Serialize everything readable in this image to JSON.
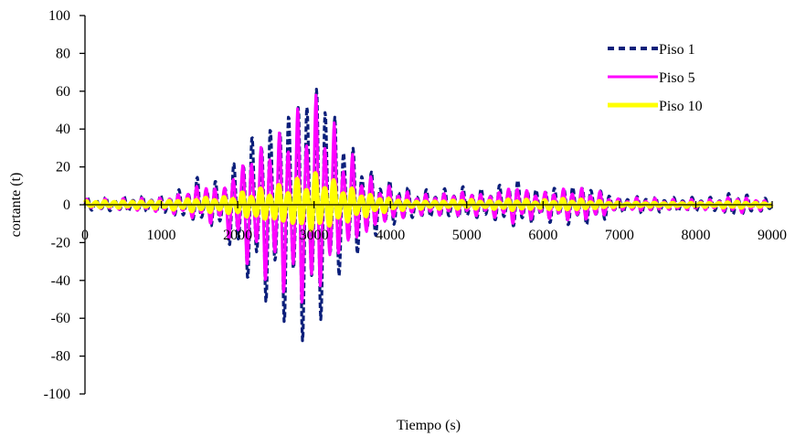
{
  "chart_data": {
    "type": "line",
    "title": "",
    "xlabel": "Tiempo (s)",
    "ylabel": "cortante (t)",
    "xlim": [
      0,
      9000
    ],
    "ylim": [
      -100,
      100
    ],
    "x_ticks": [
      "0",
      "1000",
      "2000",
      "3000",
      "4000",
      "5000",
      "6000",
      "7000",
      "8000",
      "9000"
    ],
    "y_ticks": [
      "100",
      "80",
      "60",
      "40",
      "20",
      "0",
      "-20",
      "-40",
      "-60",
      "-80",
      "-100"
    ],
    "grid": false,
    "legend_position": "top-right",
    "series": [
      {
        "name": "Piso 1",
        "color": "#0b1f7a",
        "style": "dashed",
        "envelope_x": [
          0,
          1000,
          1300,
          1500,
          1800,
          2000,
          2200,
          2500,
          2800,
          2950,
          3100,
          3300,
          3500,
          3700,
          3900,
          4100,
          4300,
          4600,
          5000,
          5300,
          5600,
          5700,
          5900,
          6200,
          6400,
          6700,
          7000,
          7300,
          7600,
          8000,
          8300,
          8500,
          8700,
          9000
        ],
        "envelope_max": [
          4,
          5,
          9,
          16,
          12,
          28,
          42,
          50,
          68,
          72,
          78,
          50,
          34,
          20,
          14,
          12,
          8,
          8,
          10,
          8,
          15,
          14,
          9,
          11,
          12,
          10,
          4,
          5,
          4,
          4,
          4,
          7,
          5,
          3
        ],
        "envelope_min": [
          -3,
          -5,
          -8,
          -10,
          -15,
          -32,
          -45,
          -58,
          -70,
          -77,
          -60,
          -40,
          -30,
          -22,
          -14,
          -11,
          -8,
          -8,
          -8,
          -8,
          -12,
          -13,
          -9,
          -10,
          -11,
          -10,
          -4,
          -5,
          -4,
          -4,
          -4,
          -7,
          -5,
          -3
        ]
      },
      {
        "name": "Piso 5",
        "color": "#ff00ff",
        "style": "solid",
        "envelope_x": [
          0,
          1000,
          1300,
          1500,
          1800,
          2000,
          2200,
          2500,
          2800,
          2950,
          3100,
          3300,
          3500,
          3700,
          3900,
          4100,
          4300,
          4600,
          5000,
          5300,
          5600,
          5700,
          5900,
          6200,
          6400,
          6700,
          7000,
          7300,
          7600,
          8000,
          8300,
          8500,
          8700,
          9000
        ],
        "envelope_max": [
          3,
          4,
          7,
          13,
          10,
          22,
          33,
          40,
          55,
          58,
          62,
          40,
          27,
          16,
          11,
          9,
          6,
          6,
          8,
          6,
          12,
          11,
          7,
          9,
          10,
          8,
          3,
          4,
          3,
          3,
          3,
          5,
          4,
          2
        ],
        "envelope_min": [
          -2,
          -4,
          -6,
          -8,
          -12,
          -26,
          -36,
          -46,
          -56,
          -60,
          -48,
          -32,
          -24,
          -18,
          -11,
          -9,
          -6,
          -6,
          -6,
          -6,
          -10,
          -10,
          -7,
          -8,
          -9,
          -8,
          -3,
          -4,
          -3,
          -3,
          -3,
          -5,
          -4,
          -2
        ]
      },
      {
        "name": "Piso 10",
        "color": "#ffff00",
        "style": "solid",
        "envelope_x": [
          0,
          1000,
          1300,
          1500,
          1800,
          2000,
          2200,
          2500,
          2800,
          2950,
          3100,
          3300,
          3500,
          3700,
          3900,
          4100,
          4300,
          4600,
          5000,
          5300,
          5600,
          5700,
          5900,
          6200,
          6400,
          6700,
          7000,
          7300,
          7600,
          8000,
          8300,
          8500,
          8700,
          9000
        ],
        "envelope_max": [
          2,
          2,
          3,
          4,
          4,
          6,
          8,
          10,
          14,
          16,
          18,
          12,
          9,
          6,
          4,
          3,
          2,
          2,
          3,
          2,
          3,
          3,
          2,
          3,
          3,
          2,
          1,
          1,
          1,
          1,
          1,
          2,
          1,
          1
        ],
        "envelope_min": [
          -1,
          -2,
          -3,
          -4,
          -4,
          -6,
          -8,
          -10,
          -13,
          -16,
          -14,
          -11,
          -9,
          -6,
          -4,
          -3,
          -2,
          -2,
          -2,
          -2,
          -3,
          -3,
          -2,
          -3,
          -3,
          -2,
          -1,
          -1,
          -1,
          -1,
          -1,
          -2,
          -1,
          -1
        ]
      }
    ]
  }
}
